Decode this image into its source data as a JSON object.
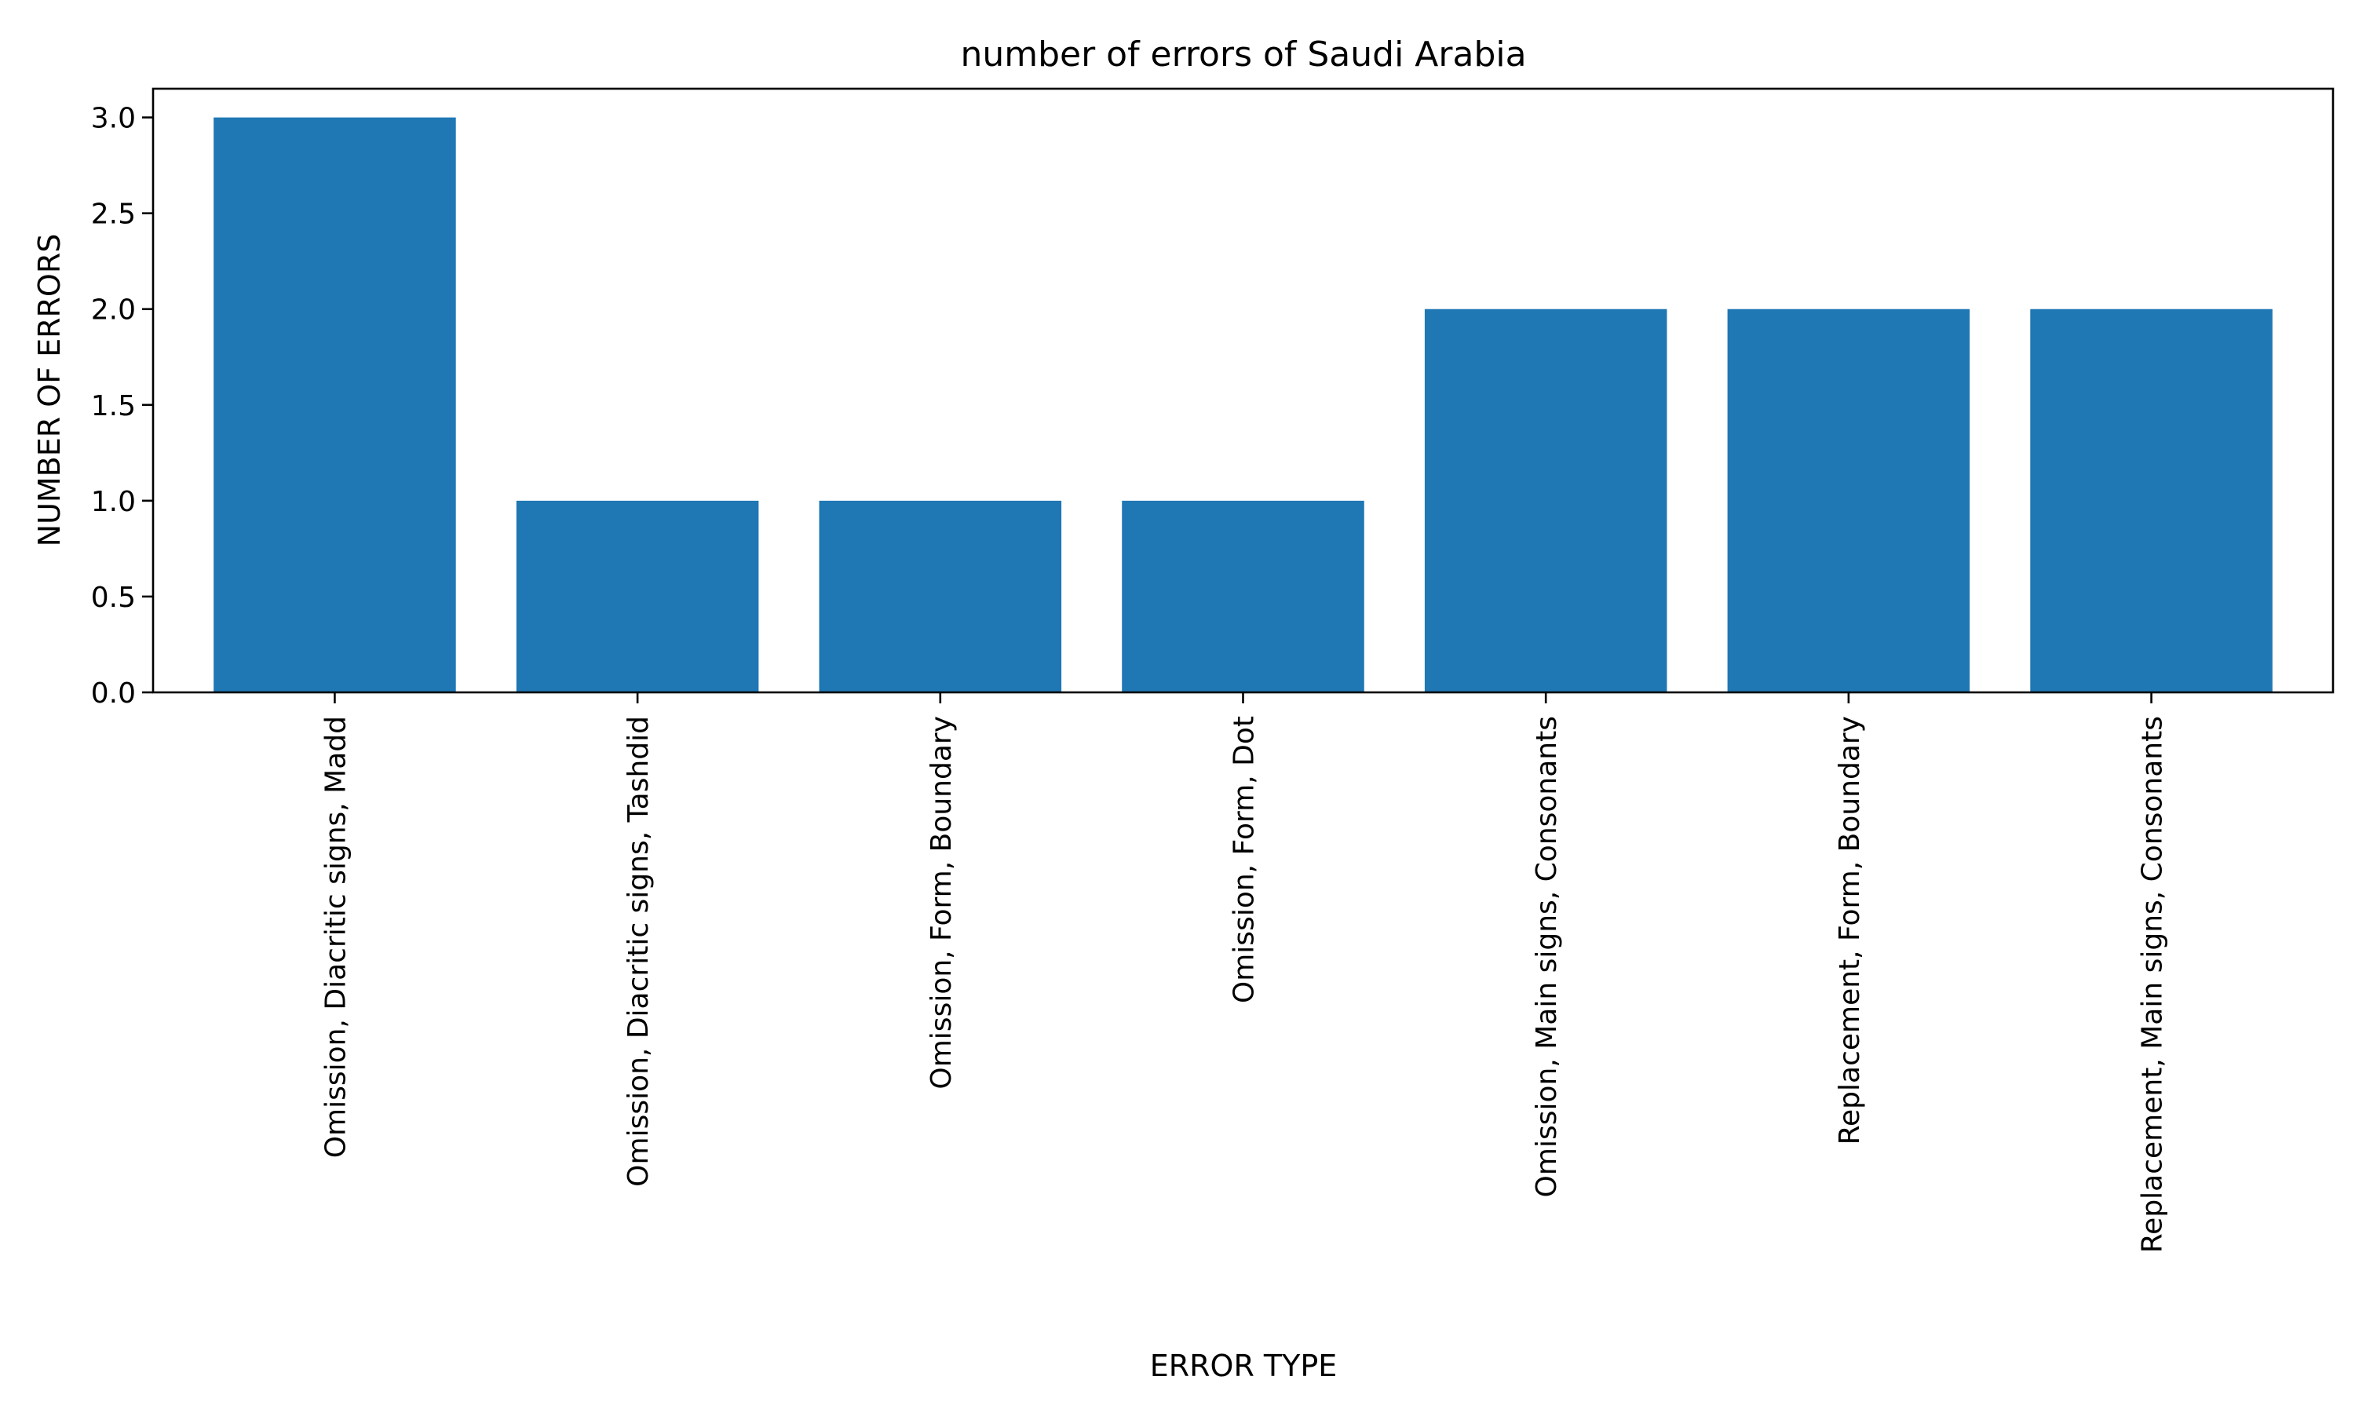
{
  "chart_data": {
    "type": "bar",
    "title": "number of errors of Saudi Arabia",
    "xlabel": "ERROR TYPE",
    "ylabel": "NUMBER OF ERRORS",
    "categories": [
      "Omission, Diacritic signs, Madd",
      "Omission, Diacritic signs, Tashdid",
      "Omission, Form, Boundary",
      "Omission, Form, Dot",
      "Omission, Main signs, Consonants",
      "Replacement, Form, Boundary",
      "Replacement, Main signs, Consonants"
    ],
    "values": [
      3,
      1,
      1,
      1,
      2,
      2,
      2
    ],
    "ylim": [
      0,
      3.15
    ],
    "yticks": [
      "0.0",
      "0.5",
      "1.0",
      "1.5",
      "2.0",
      "2.5",
      "3.0"
    ],
    "grid": false,
    "legend": "none",
    "bar_color": "#1f77b4"
  }
}
